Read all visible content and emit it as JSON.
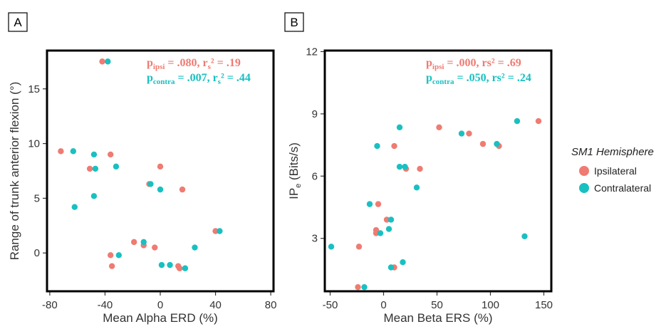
{
  "legend": {
    "title": "SM1 Hemisphere",
    "items": [
      {
        "label": "Ipsilateral",
        "color": "#ef7b72"
      },
      {
        "label": "Contralateral",
        "color": "#19c0c2"
      }
    ]
  },
  "chart_data": [
    {
      "type": "scatter",
      "panel_label": "A",
      "xlabel": "Mean Alpha ERD (%)",
      "ylabel": "Range of trunk anterior flexion (°)",
      "xlim": [
        -82,
        82
      ],
      "ylim": [
        -3.5,
        18.5
      ],
      "xticks": [
        -80,
        -40,
        0,
        40,
        80
      ],
      "xtick_labels": [
        "-80",
        "-40",
        "0",
        "40",
        "80"
      ],
      "yticks": [
        0,
        5,
        10,
        15
      ],
      "ytick_labels": [
        "0",
        "5",
        "10",
        "15"
      ],
      "grid": false,
      "stats": {
        "ipsi": {
          "p_main": "p",
          "p_sub": "ipsi",
          "text": " = .080, r",
          "r_sub": "s",
          "tail": "² = .19"
        },
        "contra": {
          "p_main": "p",
          "p_sub": "contra",
          "text": " = .007, r",
          "r_sub": "s",
          "tail": "² = .44"
        }
      },
      "series": [
        {
          "name": "Ipsilateral",
          "color": "#ef7b72",
          "points": [
            {
              "x": -42,
              "y": 17.5
            },
            {
              "x": -72,
              "y": 9.3
            },
            {
              "x": -36,
              "y": 9.0
            },
            {
              "x": -51,
              "y": 7.7
            },
            {
              "x": 0,
              "y": 7.9
            },
            {
              "x": -8,
              "y": 6.3
            },
            {
              "x": 16,
              "y": 5.8
            },
            {
              "x": -19,
              "y": 1.0
            },
            {
              "x": -12,
              "y": 0.7
            },
            {
              "x": -4,
              "y": 0.5
            },
            {
              "x": 40,
              "y": 2.0
            },
            {
              "x": -36,
              "y": -0.2
            },
            {
              "x": -35,
              "y": -1.2
            },
            {
              "x": 13,
              "y": -1.2
            },
            {
              "x": 14,
              "y": -1.4
            }
          ]
        },
        {
          "name": "Contralateral",
          "color": "#19c0c2",
          "points": [
            {
              "x": -38,
              "y": 17.5
            },
            {
              "x": -63,
              "y": 9.3
            },
            {
              "x": -48,
              "y": 9.0
            },
            {
              "x": -47,
              "y": 7.7
            },
            {
              "x": -32,
              "y": 7.9
            },
            {
              "x": -7,
              "y": 6.3
            },
            {
              "x": 0,
              "y": 5.8
            },
            {
              "x": -48,
              "y": 5.2
            },
            {
              "x": -62,
              "y": 4.2
            },
            {
              "x": -12,
              "y": 1.0
            },
            {
              "x": -30,
              "y": -0.2
            },
            {
              "x": 1,
              "y": -1.1
            },
            {
              "x": 7,
              "y": -1.1
            },
            {
              "x": 18,
              "y": -1.4
            },
            {
              "x": 25,
              "y": 0.5
            },
            {
              "x": 43,
              "y": 2.0
            }
          ]
        }
      ]
    },
    {
      "type": "scatter",
      "panel_label": "B",
      "xlabel": "Mean Beta ERS (%)",
      "ylabel_main": "IP",
      "ylabel_sub": "e",
      "ylabel_tail": " (Bits/s)",
      "xlim": [
        -55,
        157
      ],
      "ylim": [
        0.45,
        12.05
      ],
      "xticks": [
        -50,
        0,
        50,
        100,
        150
      ],
      "xtick_labels": [
        "-50",
        "0",
        "50",
        "100",
        "150"
      ],
      "yticks": [
        3,
        6,
        9,
        12
      ],
      "ytick_labels": [
        "3",
        "6",
        "9",
        "12"
      ],
      "grid": false,
      "stats": {
        "ipsi": {
          "p_main": "p",
          "p_sub": "ipsi",
          "text": " = .000, rs² = .69"
        },
        "contra": {
          "p_main": "p",
          "p_sub": "contra",
          "text": " = .050, rs² = .24"
        }
      },
      "series": [
        {
          "name": "Ipsilateral",
          "color": "#ef7b72",
          "points": [
            {
              "x": 145,
              "y": 8.65
            },
            {
              "x": 52,
              "y": 8.35
            },
            {
              "x": 80,
              "y": 8.05
            },
            {
              "x": 93,
              "y": 7.55
            },
            {
              "x": 108,
              "y": 7.45
            },
            {
              "x": 10,
              "y": 7.45
            },
            {
              "x": 34,
              "y": 6.35
            },
            {
              "x": 21,
              "y": 6.35
            },
            {
              "x": -5,
              "y": 4.65
            },
            {
              "x": 3,
              "y": 3.9
            },
            {
              "x": -7,
              "y": 3.4
            },
            {
              "x": -7,
              "y": 3.25
            },
            {
              "x": -23,
              "y": 2.6
            },
            {
              "x": 10,
              "y": 1.6
            },
            {
              "x": -24,
              "y": 0.65
            }
          ]
        },
        {
          "name": "Contralateral",
          "color": "#19c0c2",
          "points": [
            {
              "x": 125,
              "y": 8.65
            },
            {
              "x": 15,
              "y": 8.35
            },
            {
              "x": 73,
              "y": 8.05
            },
            {
              "x": 106,
              "y": 7.55
            },
            {
              "x": -6,
              "y": 7.45
            },
            {
              "x": 15,
              "y": 6.45
            },
            {
              "x": 20,
              "y": 6.45
            },
            {
              "x": 31,
              "y": 5.45
            },
            {
              "x": -13,
              "y": 4.65
            },
            {
              "x": 7,
              "y": 3.9
            },
            {
              "x": 5,
              "y": 3.45
            },
            {
              "x": -3,
              "y": 3.25
            },
            {
              "x": -49,
              "y": 2.6
            },
            {
              "x": 18,
              "y": 1.85
            },
            {
              "x": 7,
              "y": 1.6
            },
            {
              "x": -18,
              "y": 0.65
            },
            {
              "x": 132,
              "y": 3.1
            }
          ]
        }
      ]
    }
  ]
}
